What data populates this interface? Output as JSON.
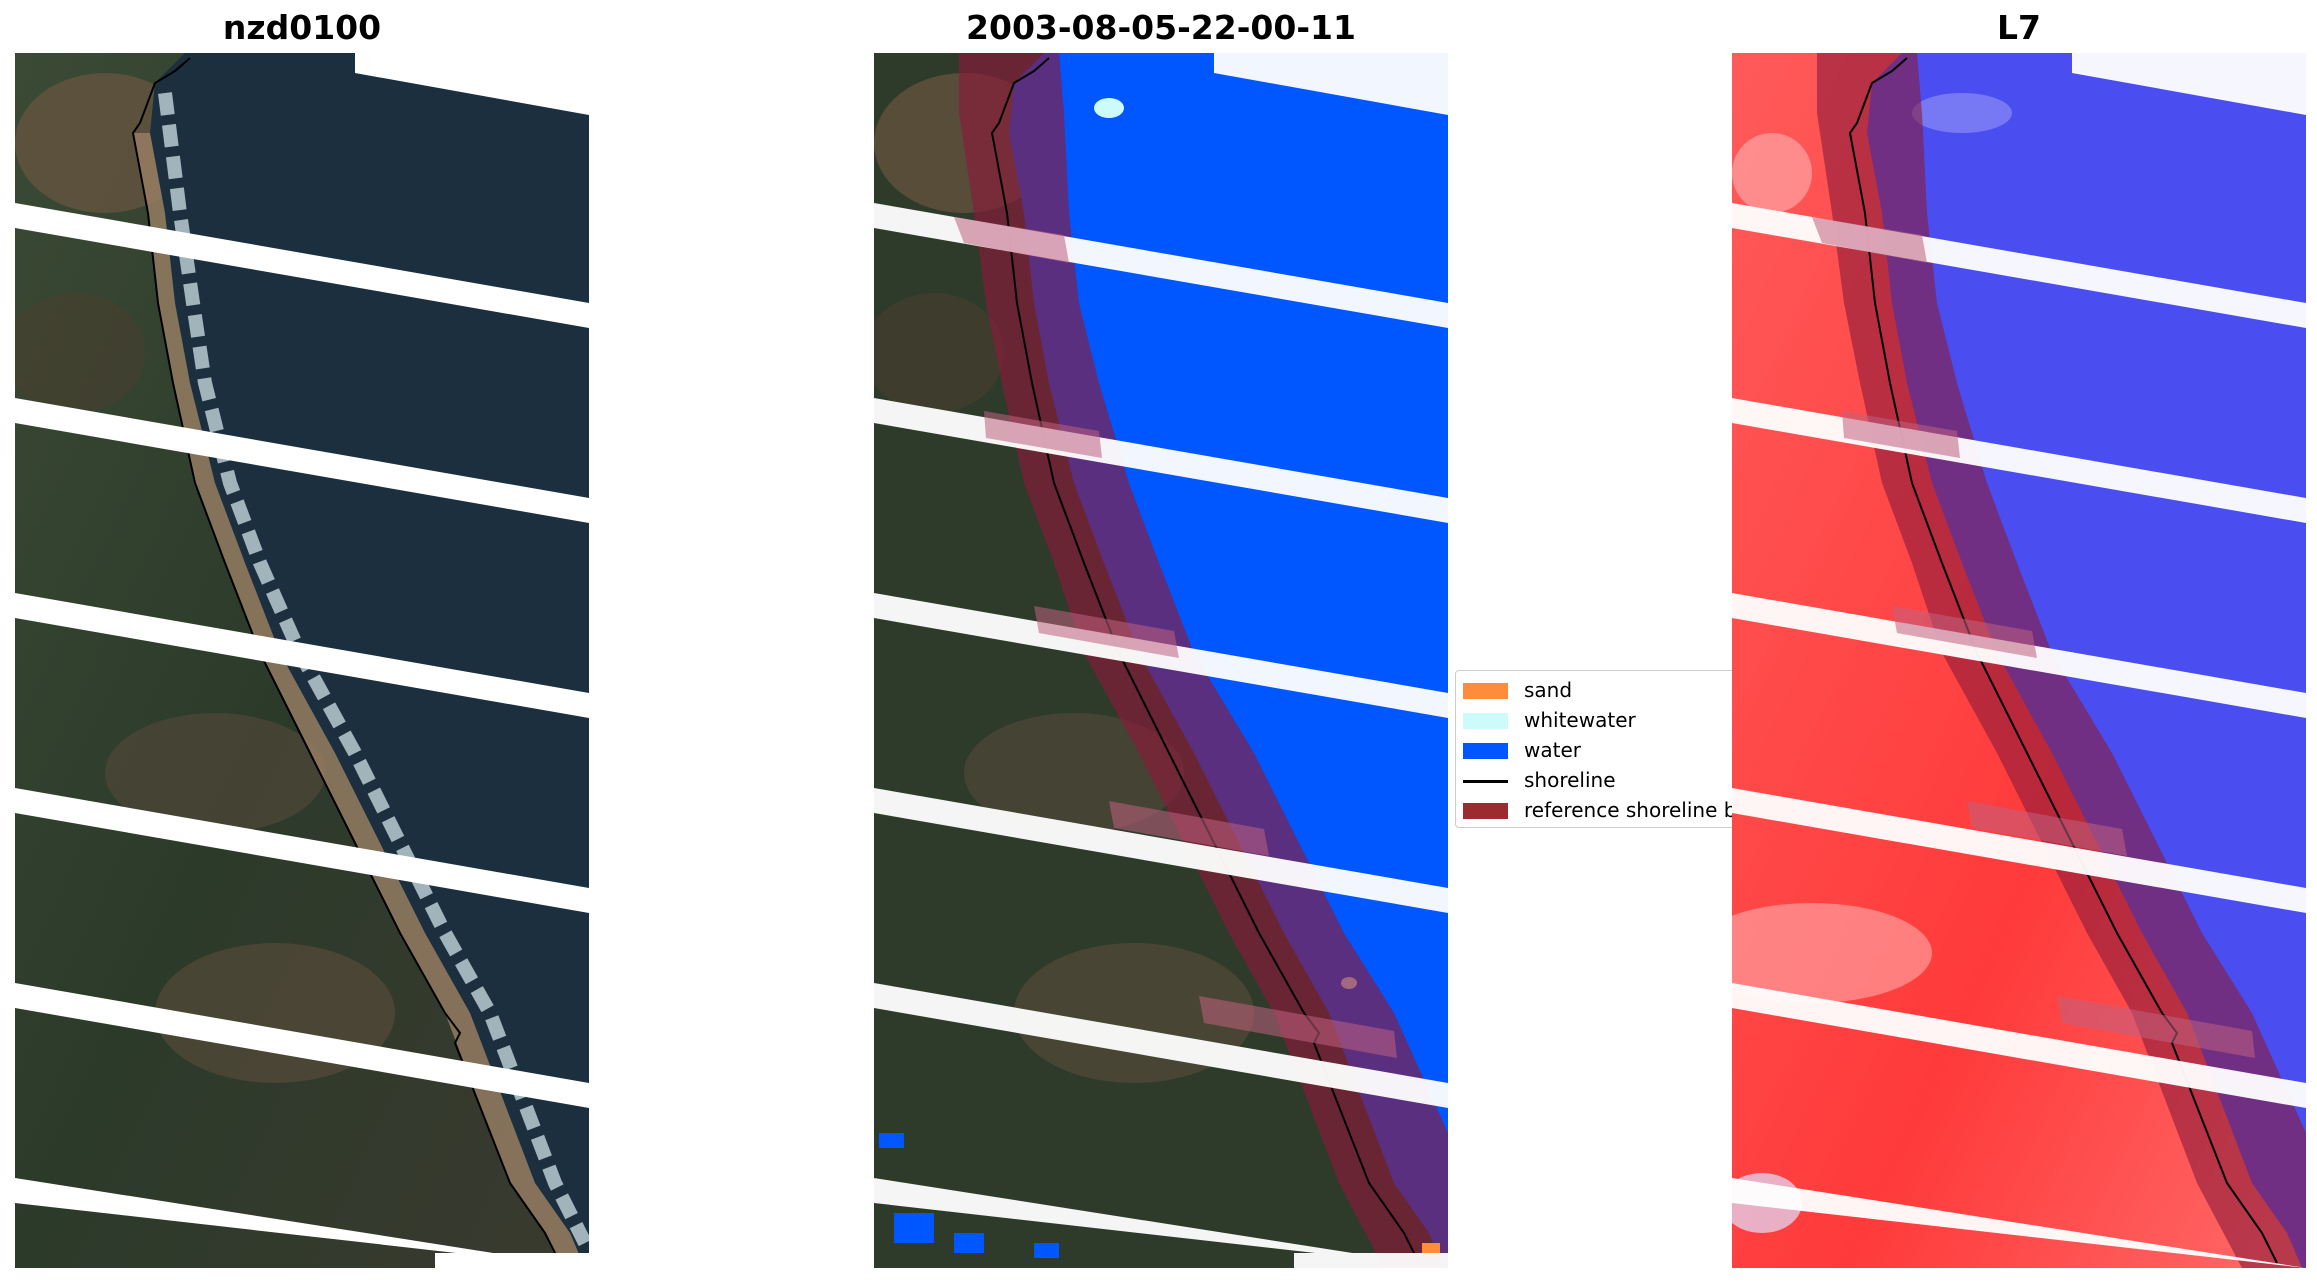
{
  "panels": {
    "rgb": {
      "title": "nzd0100"
    },
    "classified": {
      "title": "2003-08-05-22-00-11"
    },
    "index": {
      "title": "L7"
    }
  },
  "legend": {
    "items": [
      {
        "label": "sand",
        "color": "#ff8c3a"
      },
      {
        "label": "whitewater",
        "color": "#cdfafa"
      },
      {
        "label": "water",
        "color": "#0057ff"
      },
      {
        "label": "shoreline",
        "color": "#000000"
      },
      {
        "label": "reference shoreline buffer",
        "color": "#9b2b2f"
      }
    ]
  },
  "colors": {
    "land_dark": "#2e3b2a",
    "land_brown": "#5a4a38",
    "ocean_dark": "#1b2f3f",
    "surf": "#cfe0e6",
    "water_class": "#0057ff",
    "index_land": "#ff4a4a",
    "index_water": "#4a4ef0",
    "buffer": "#8b1a3a",
    "stripe": "#ffffff"
  }
}
